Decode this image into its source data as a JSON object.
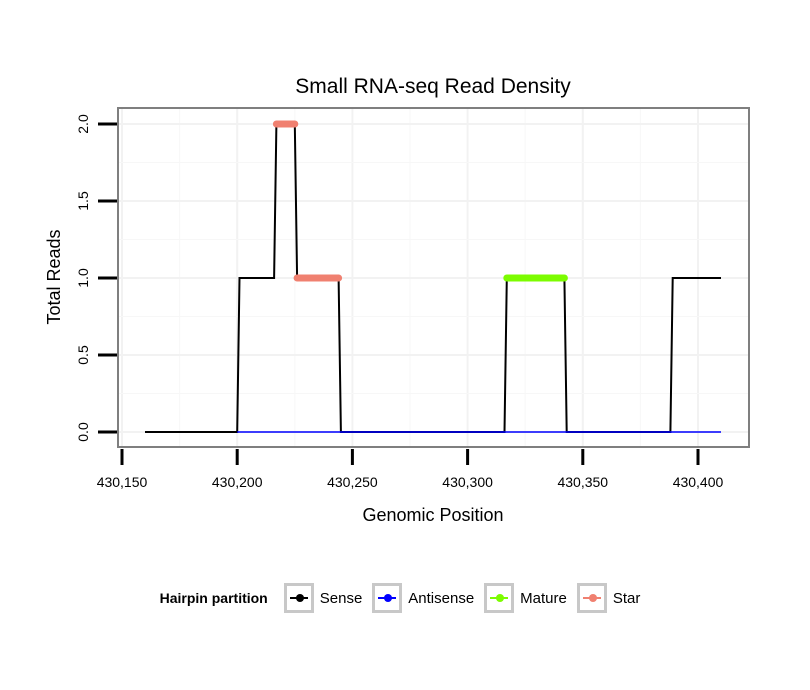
{
  "chart_data": {
    "type": "line",
    "title": "Small RNA-seq Read Density",
    "xlabel": "Genomic Position",
    "ylabel": "Total Reads",
    "xlim": [
      430150,
      430410
    ],
    "ylim": [
      0,
      2
    ],
    "x_ticks": [
      430150,
      430200,
      430250,
      430300,
      430350,
      430400
    ],
    "x_tick_labels": [
      "430,150",
      "430,200",
      "430,250",
      "430,300",
      "430,350",
      "430,400"
    ],
    "y_ticks": [
      0,
      0.5,
      1,
      1.5,
      2
    ],
    "y_tick_labels": [
      "0.0",
      "0.5",
      "1.0",
      "1.5",
      "2.0"
    ],
    "grid": true,
    "legend": {
      "title": "Hairpin partition",
      "placement": "bottom",
      "entries": [
        {
          "label": "Sense",
          "color": "#000000"
        },
        {
          "label": "Antisense",
          "color": "#0000ff"
        },
        {
          "label": "Mature",
          "color": "#7cfc00"
        },
        {
          "label": "Star",
          "color": "#f08070"
        }
      ]
    },
    "series": [
      {
        "name": "Sense",
        "color": "#000000",
        "width": 2,
        "points": [
          [
            430160,
            0
          ],
          [
            430200,
            0
          ],
          [
            430201,
            1
          ],
          [
            430216,
            1
          ],
          [
            430217,
            2
          ],
          [
            430225,
            2
          ],
          [
            430226,
            1
          ],
          [
            430244,
            1
          ],
          [
            430245,
            0
          ],
          [
            430316,
            0
          ],
          [
            430317,
            1
          ],
          [
            430342,
            1
          ],
          [
            430343,
            0
          ],
          [
            430388,
            0
          ],
          [
            430389,
            1
          ],
          [
            430410,
            1
          ]
        ]
      },
      {
        "name": "Antisense",
        "color": "#0000ff",
        "width": 1.5,
        "points": [
          [
            430200,
            0
          ],
          [
            430410,
            0
          ]
        ]
      },
      {
        "name": "Mature",
        "color": "#7cfc00",
        "width": 7,
        "points": [
          [
            430317,
            1
          ],
          [
            430342,
            1
          ]
        ]
      },
      {
        "name": "Star",
        "color": "#f08070",
        "width": 7,
        "segments": [
          [
            [
              430217,
              2
            ],
            [
              430225,
              2
            ]
          ],
          [
            [
              430226,
              1
            ],
            [
              430244,
              1
            ]
          ]
        ]
      }
    ]
  }
}
